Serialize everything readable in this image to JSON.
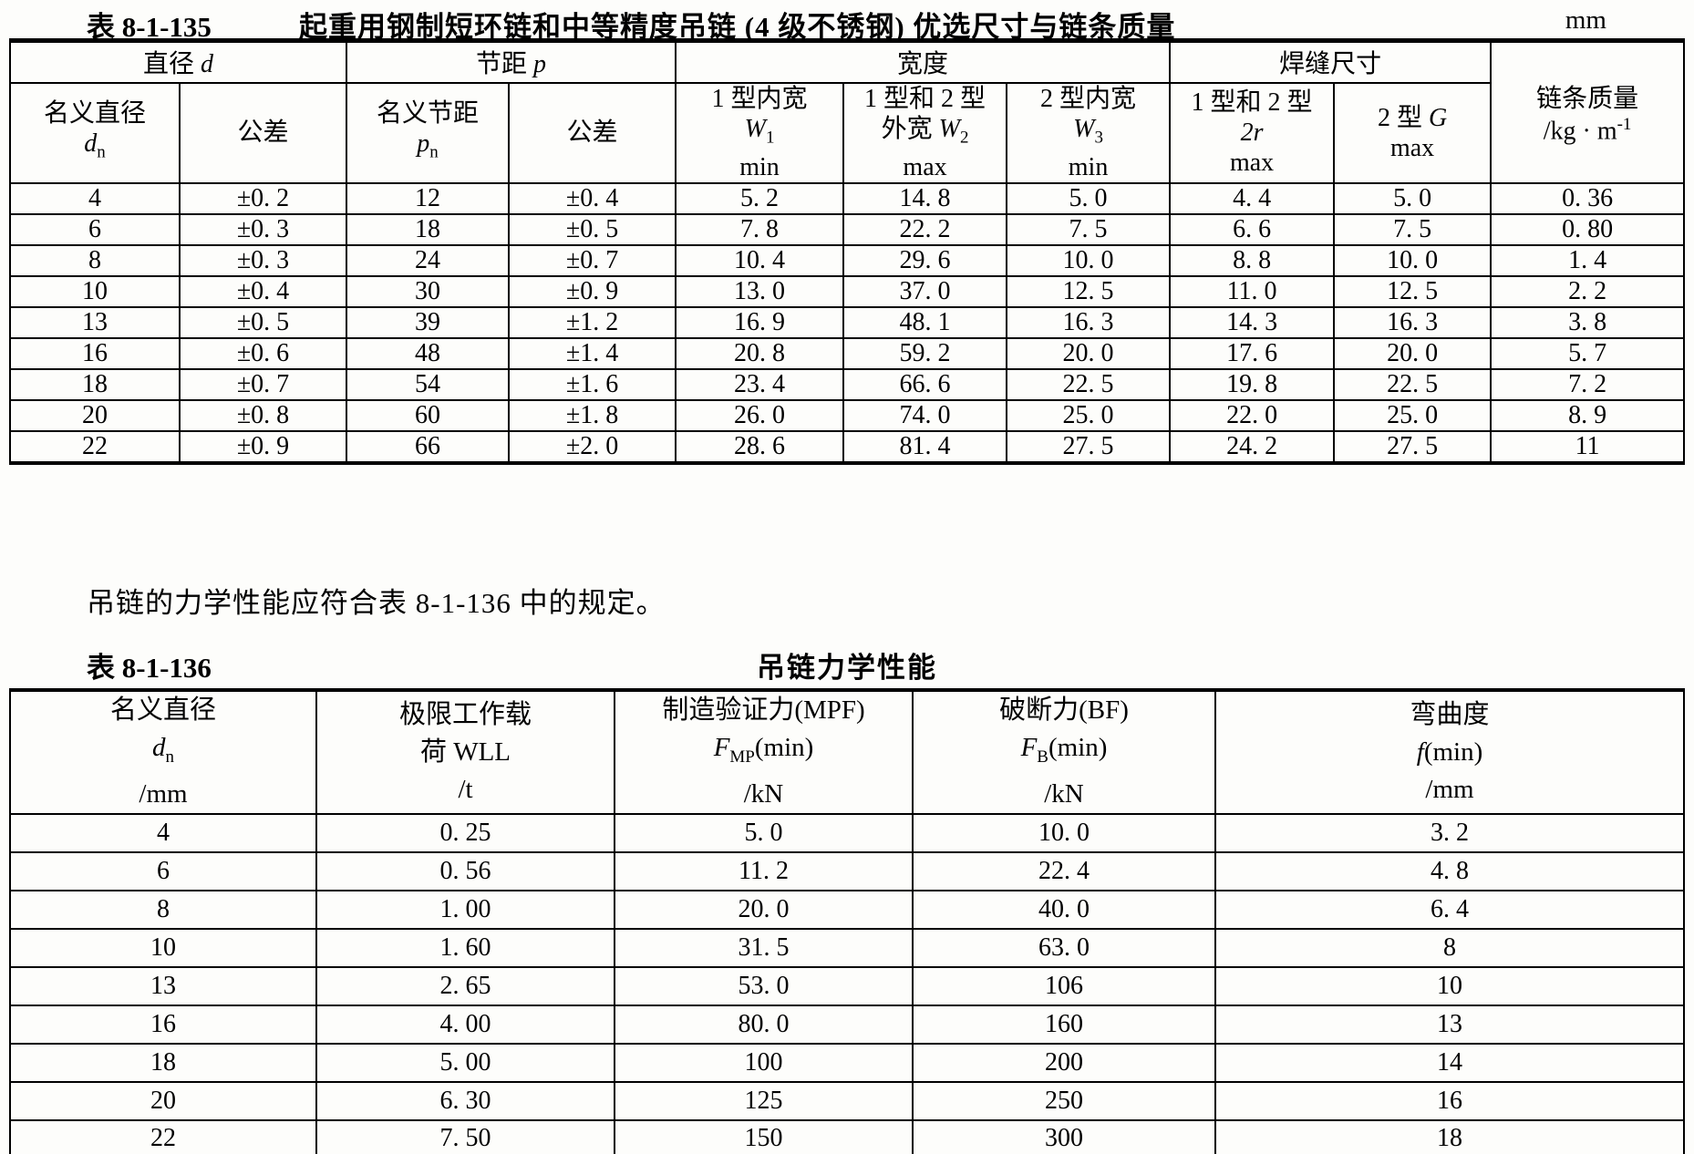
{
  "table1": {
    "table_no": "表 8-1-135",
    "title": "起重用钢制短环链和中等精度吊链 (4 级不锈钢) 优选尺寸与链条质量",
    "unit": "mm",
    "groups": {
      "diameter": {
        "text": "直径 ",
        "sym": "d"
      },
      "pitch": {
        "text": "节距 ",
        "sym": "p"
      },
      "width": "宽度",
      "weld": "焊缝尺寸"
    },
    "cols": {
      "c1": {
        "line1": "名义直径",
        "sym": "d",
        "sub": "n"
      },
      "c2": "公差",
      "c3": {
        "line1": "名义节距",
        "sym": "p",
        "sub": "n"
      },
      "c4": "公差",
      "c5": {
        "line1": "1 型内宽",
        "sym": "W",
        "sub": "1",
        "limit": "min"
      },
      "c6": {
        "line1": "1 型和 2 型",
        "pre": "外宽 ",
        "sym": "W",
        "sub": "2",
        "limit": "max"
      },
      "c7": {
        "line1": "2 型内宽",
        "sym": "W",
        "sub": "3",
        "limit": "min"
      },
      "c8": {
        "line1": "1 型和 2 型",
        "sym": "2r",
        "limit": "max"
      },
      "c9": {
        "line1": "2 型 ",
        "sym": "G",
        "limit": "max"
      },
      "c10": {
        "line1": "链条质量",
        "line2": "/kg · m",
        "sup": "-1"
      }
    },
    "rows": [
      [
        "4",
        "±0. 2",
        "12",
        "±0. 4",
        "5. 2",
        "14. 8",
        "5. 0",
        "4. 4",
        "5. 0",
        "0. 36"
      ],
      [
        "6",
        "±0. 3",
        "18",
        "±0. 5",
        "7. 8",
        "22. 2",
        "7. 5",
        "6. 6",
        "7. 5",
        "0. 80"
      ],
      [
        "8",
        "±0. 3",
        "24",
        "±0. 7",
        "10. 4",
        "29. 6",
        "10. 0",
        "8. 8",
        "10. 0",
        "1. 4"
      ],
      [
        "10",
        "±0. 4",
        "30",
        "±0. 9",
        "13. 0",
        "37. 0",
        "12. 5",
        "11. 0",
        "12. 5",
        "2. 2"
      ],
      [
        "13",
        "±0. 5",
        "39",
        "±1. 2",
        "16. 9",
        "48. 1",
        "16. 3",
        "14. 3",
        "16. 3",
        "3. 8"
      ],
      [
        "16",
        "±0. 6",
        "48",
        "±1. 4",
        "20. 8",
        "59. 2",
        "20. 0",
        "17. 6",
        "20. 0",
        "5. 7"
      ],
      [
        "18",
        "±0. 7",
        "54",
        "±1. 6",
        "23. 4",
        "66. 6",
        "22. 5",
        "19. 8",
        "22. 5",
        "7. 2"
      ],
      [
        "20",
        "±0. 8",
        "60",
        "±1. 8",
        "26. 0",
        "74. 0",
        "25. 0",
        "22. 0",
        "25. 0",
        "8. 9"
      ],
      [
        "22",
        "±0. 9",
        "66",
        "±2. 0",
        "28. 6",
        "81. 4",
        "27. 5",
        "24. 2",
        "27. 5",
        "11"
      ]
    ]
  },
  "paragraph": "吊链的力学性能应符合表 8-1-136 中的规定。",
  "table2": {
    "table_no": "表 8-1-136",
    "title": "吊链力学性能",
    "cols": {
      "c1": {
        "line1": "名义直径",
        "sym": "d",
        "sub": "n",
        "unit": "/mm"
      },
      "c2": {
        "line1": "极限工作载",
        "line2": "荷 WLL",
        "unit": "/t"
      },
      "c3": {
        "line1": "制造验证力(MPF)",
        "sym": "F",
        "sub": "MP",
        "tail": "(min)",
        "unit": "/kN"
      },
      "c4": {
        "line1": "破断力(BF)",
        "sym": "F",
        "sub": "B",
        "tail": "(min)",
        "unit": "/kN"
      },
      "c5": {
        "line1": "弯曲度",
        "sym": "f",
        "tail": "(min)",
        "unit": "/mm"
      }
    },
    "rows": [
      [
        "4",
        "0. 25",
        "5. 0",
        "10. 0",
        "3. 2"
      ],
      [
        "6",
        "0. 56",
        "11. 2",
        "22. 4",
        "4. 8"
      ],
      [
        "8",
        "1. 00",
        "20. 0",
        "40. 0",
        "6. 4"
      ],
      [
        "10",
        "1. 60",
        "31. 5",
        "63. 0",
        "8"
      ],
      [
        "13",
        "2. 65",
        "53. 0",
        "106",
        "10"
      ],
      [
        "16",
        "4. 00",
        "80. 0",
        "160",
        "13"
      ],
      [
        "18",
        "5. 00",
        "100",
        "200",
        "14"
      ],
      [
        "20",
        "6. 30",
        "125",
        "250",
        "16"
      ],
      [
        "22",
        "7. 50",
        "150",
        "300",
        "18"
      ]
    ]
  }
}
